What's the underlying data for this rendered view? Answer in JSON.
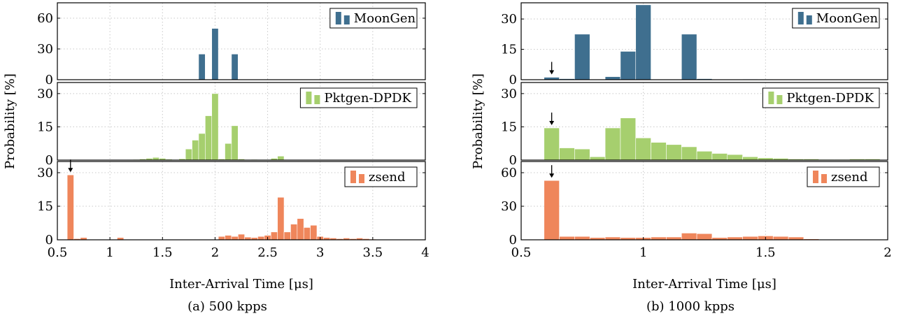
{
  "chart_data": [
    {
      "type": "bar",
      "caption": "(a) 500 kpps",
      "xlabel": "Inter-Arrival Time [μs]",
      "ylabel": "Probability [%]",
      "xlim": [
        0.5,
        4
      ],
      "xticks": [
        0.5,
        1,
        1.5,
        2,
        2.5,
        3,
        3.5,
        4
      ],
      "grid": true,
      "legend_position": "top-right",
      "bin_width": 0.0625,
      "panels": [
        {
          "name": "MoonGen",
          "color": "#3f6f8f",
          "ylim": [
            0,
            75
          ],
          "yticks": [
            0,
            30,
            60
          ],
          "x": [
            0.625,
            1.875,
            2.0,
            2.1875
          ],
          "values": [
            0.3,
            25,
            50,
            25
          ]
        },
        {
          "name": "Pktgen-DPDK",
          "color": "#a6cf6e",
          "ylim": [
            0,
            35
          ],
          "yticks": [
            0,
            15,
            30
          ],
          "x": [
            1.125,
            1.1875,
            1.25,
            1.3125,
            1.375,
            1.4375,
            1.5,
            1.5625,
            1.625,
            1.6875,
            1.75,
            1.8125,
            1.875,
            1.9375,
            2.0,
            2.0625,
            2.125,
            2.1875,
            2.25,
            2.3125,
            2.375,
            2.4375,
            2.5,
            2.5625,
            2.625
          ],
          "values": [
            0.1,
            0.2,
            0.3,
            0.5,
            0.8,
            1.2,
            0.8,
            0.4,
            0.2,
            0.6,
            5,
            9,
            12,
            20,
            30,
            0.5,
            7.5,
            15.5,
            0.5,
            0.2,
            0.3,
            0.2,
            0.2,
            0.8,
            1.8
          ]
        },
        {
          "name": "zsend",
          "color": "#ef865b",
          "ylim": [
            0,
            35
          ],
          "yticks": [
            0,
            15,
            30
          ],
          "markers": [
            0.625
          ],
          "x": [
            0.625,
            0.6875,
            0.75,
            1.1,
            2.0625,
            2.125,
            2.1875,
            2.25,
            2.3125,
            2.375,
            2.4375,
            2.5,
            2.5625,
            2.625,
            2.6875,
            2.75,
            2.8125,
            2.875,
            2.9375,
            3.0,
            3.0625,
            3.125,
            3.1875,
            3.25,
            3.3125,
            3.375,
            3.4375,
            3.5
          ],
          "values": [
            29,
            0.5,
            1,
            1,
            1.5,
            2,
            1.5,
            2.5,
            1.2,
            1,
            1.5,
            2,
            3.5,
            19,
            3.5,
            7,
            9.5,
            5.5,
            6.5,
            1.5,
            1,
            0.8,
            0.5,
            0.8,
            0.5,
            0.8,
            0.5,
            0.3
          ]
        }
      ]
    },
    {
      "type": "bar",
      "caption": "(b) 1000 kpps",
      "xlabel": "Inter-Arrival Time [μs]",
      "ylabel": "Probability [%]",
      "xlim": [
        0.5,
        2
      ],
      "xticks": [
        0.5,
        1,
        1.5,
        2
      ],
      "grid": true,
      "legend_position": "top-right",
      "bin_width": 0.0625,
      "panels": [
        {
          "name": "MoonGen",
          "color": "#3f6f8f",
          "ylim": [
            0,
            38
          ],
          "yticks": [
            0,
            15,
            30
          ],
          "markers": [
            0.625
          ],
          "x": [
            0.625,
            0.6875,
            0.75,
            0.875,
            0.9375,
            1.0,
            1.1875,
            1.25,
            1.4375,
            1.5
          ],
          "values": [
            1.2,
            0.5,
            22.5,
            1.5,
            14,
            37,
            22.5,
            0.5,
            0.3,
            0.2
          ]
        },
        {
          "name": "Pktgen-DPDK",
          "color": "#a6cf6e",
          "ylim": [
            0,
            35
          ],
          "yticks": [
            0,
            15,
            30
          ],
          "markers": [
            0.625
          ],
          "x": [
            0.625,
            0.6875,
            0.75,
            0.8125,
            0.875,
            0.9375,
            1.0,
            1.0625,
            1.125,
            1.1875,
            1.25,
            1.3125,
            1.375,
            1.4375,
            1.5,
            1.5625,
            1.625,
            1.6875,
            1.75,
            1.8125,
            1.875,
            1.9375
          ],
          "values": [
            14.5,
            5.5,
            5,
            1.5,
            14.5,
            19,
            10,
            8,
            7,
            6,
            4,
            3,
            2.5,
            1.5,
            1,
            0.8,
            0.5,
            0.5,
            0.3,
            0.3,
            0.5,
            0.5
          ]
        },
        {
          "name": "zsend",
          "color": "#ef865b",
          "ylim": [
            0,
            70
          ],
          "yticks": [
            0,
            30,
            60
          ],
          "markers": [
            0.625
          ],
          "x": [
            0.625,
            0.6875,
            0.75,
            0.8125,
            0.875,
            0.9375,
            1.0,
            1.0625,
            1.125,
            1.1875,
            1.25,
            1.3125,
            1.375,
            1.4375,
            1.5,
            1.5625,
            1.625,
            1.6875,
            1.75,
            1.8125,
            1.875,
            1.9375
          ],
          "values": [
            53,
            3,
            3,
            2,
            2.5,
            2,
            2,
            2.5,
            2.5,
            6,
            5.5,
            2,
            2.5,
            3,
            3.5,
            3,
            2.5,
            0.8,
            0.5,
            0.5,
            0.5,
            0.5
          ]
        }
      ]
    }
  ]
}
